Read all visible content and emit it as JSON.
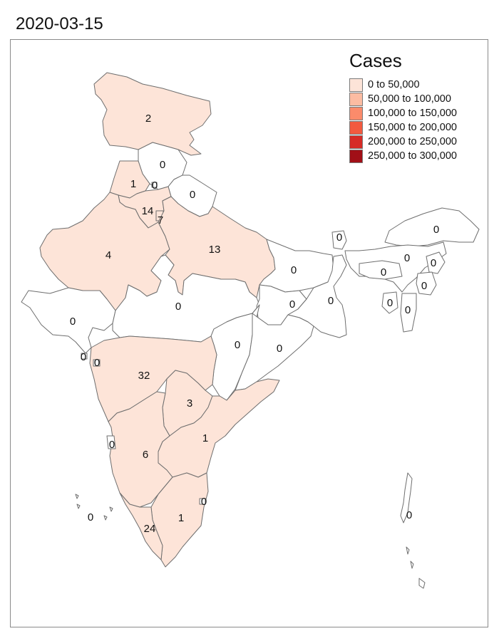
{
  "title": "2020-03-15",
  "legend": {
    "title": "Cases",
    "items": [
      {
        "label": "0 to 50,000",
        "color": "#fde4d8"
      },
      {
        "label": "50,000 to 100,000",
        "color": "#fcbca2"
      },
      {
        "label": "100,000 to 150,000",
        "color": "#fb8b6b"
      },
      {
        "label": "150,000 to 200,000",
        "color": "#f25a3f"
      },
      {
        "label": "200,000 to 250,000",
        "color": "#d62b26"
      },
      {
        "label": "250,000 to 300,000",
        "color": "#a10f17"
      }
    ]
  },
  "colors": {
    "zero": "#ffffff",
    "low": "#fde4d8",
    "border": "#6e6e6e"
  },
  "regions": [
    {
      "id": "jammu-kashmir",
      "value": "2"
    },
    {
      "id": "himachal-pradesh",
      "value": "0"
    },
    {
      "id": "punjab",
      "value": "1"
    },
    {
      "id": "chandigarh",
      "value": "0"
    },
    {
      "id": "uttarakhand",
      "value": "0"
    },
    {
      "id": "haryana",
      "value": "14"
    },
    {
      "id": "delhi",
      "value": "7"
    },
    {
      "id": "rajasthan",
      "value": "4"
    },
    {
      "id": "uttar-pradesh",
      "value": "13"
    },
    {
      "id": "gujarat",
      "value": "0"
    },
    {
      "id": "madhya-pradesh",
      "value": "0"
    },
    {
      "id": "bihar",
      "value": "0"
    },
    {
      "id": "sikkim",
      "value": "0"
    },
    {
      "id": "arunachal-pradesh",
      "value": "0"
    },
    {
      "id": "assam",
      "value": "0"
    },
    {
      "id": "meghalaya",
      "value": "0"
    },
    {
      "id": "nagaland",
      "value": "0"
    },
    {
      "id": "manipur",
      "value": "0"
    },
    {
      "id": "mizoram",
      "value": "0"
    },
    {
      "id": "tripura",
      "value": "0"
    },
    {
      "id": "jharkhand",
      "value": "0"
    },
    {
      "id": "west-bengal",
      "value": "0"
    },
    {
      "id": "chhattisgarh",
      "value": "0"
    },
    {
      "id": "odisha",
      "value": "0"
    },
    {
      "id": "maharashtra",
      "value": "32"
    },
    {
      "id": "telangana",
      "value": "3"
    },
    {
      "id": "andhra-pradesh",
      "value": "1"
    },
    {
      "id": "karnataka",
      "value": "6"
    },
    {
      "id": "tamil-nadu",
      "value": "1"
    },
    {
      "id": "kerala",
      "value": "24"
    },
    {
      "id": "goa",
      "value": "0"
    },
    {
      "id": "dadra-nagar-haveli",
      "value": "0"
    },
    {
      "id": "daman-diu",
      "value": "0"
    },
    {
      "id": "puducherry",
      "value": "0"
    },
    {
      "id": "lakshadweep",
      "value": "0"
    },
    {
      "id": "andaman-nicobar",
      "value": "0"
    }
  ]
}
